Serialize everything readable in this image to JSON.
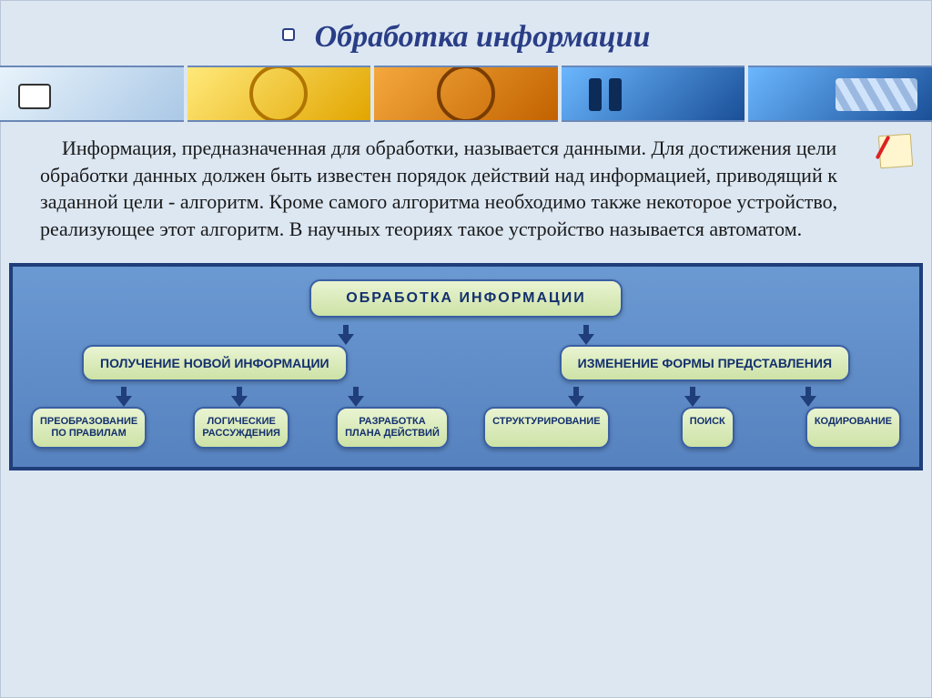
{
  "title": "Обработка информации",
  "title_color": "#2a3e87",
  "title_fontsize": 34,
  "paragraph": "Информация, предназначенная для обработки, называется данными. Для достижения цели обработки данных должен быть известен порядок действий над информацией, приводящий к заданной цели - алгоритм. Кроме самого алгоритма необходимо также некоторое устройство, реализующее этот алгоритм. В научных теориях такое устройство называется автоматом.",
  "paragraph_fontsize": 22,
  "paragraph_color": "#1a1a1a",
  "banner_colors": {
    "c1": "#aac8e6",
    "c2": "#e2a500",
    "c3": "#c26200",
    "c4": "#1a4f97",
    "c5": "#1a4f97",
    "border": "#6a88b8"
  },
  "diagram": {
    "type": "tree",
    "panel_bg_from": "#6b99d2",
    "panel_bg_to": "#5682bf",
    "panel_border": "#1f3e7a",
    "node_bg_from": "#e9f4d2",
    "node_bg_to": "#cde2a6",
    "node_border": "#3a5fa3",
    "node_text": "#13306e",
    "root": {
      "label": "ОБРАБОТКА ИНФОРМАЦИИ"
    },
    "level2": [
      {
        "id": "new",
        "label": "ПОЛУЧЕНИЕ НОВОЙ ИНФОРМАЦИИ"
      },
      {
        "id": "change",
        "label": "ИЗМЕНЕНИЕ ФОРМЫ ПРЕДСТАВЛЕНИЯ"
      }
    ],
    "leaves_left": [
      {
        "label": "ПРЕОБРАЗОВАНИЕ\nПО ПРАВИЛАМ"
      },
      {
        "label": "ЛОГИЧЕСКИЕ\nРАССУЖДЕНИЯ"
      },
      {
        "label": "РАЗРАБОТКА\nПЛАНА ДЕЙСТВИЙ"
      }
    ],
    "leaves_right": [
      {
        "label": "СТРУКТУРИРОВАНИЕ"
      },
      {
        "label": "ПОИСК"
      },
      {
        "label": "КОДИРОВАНИЕ"
      }
    ]
  }
}
